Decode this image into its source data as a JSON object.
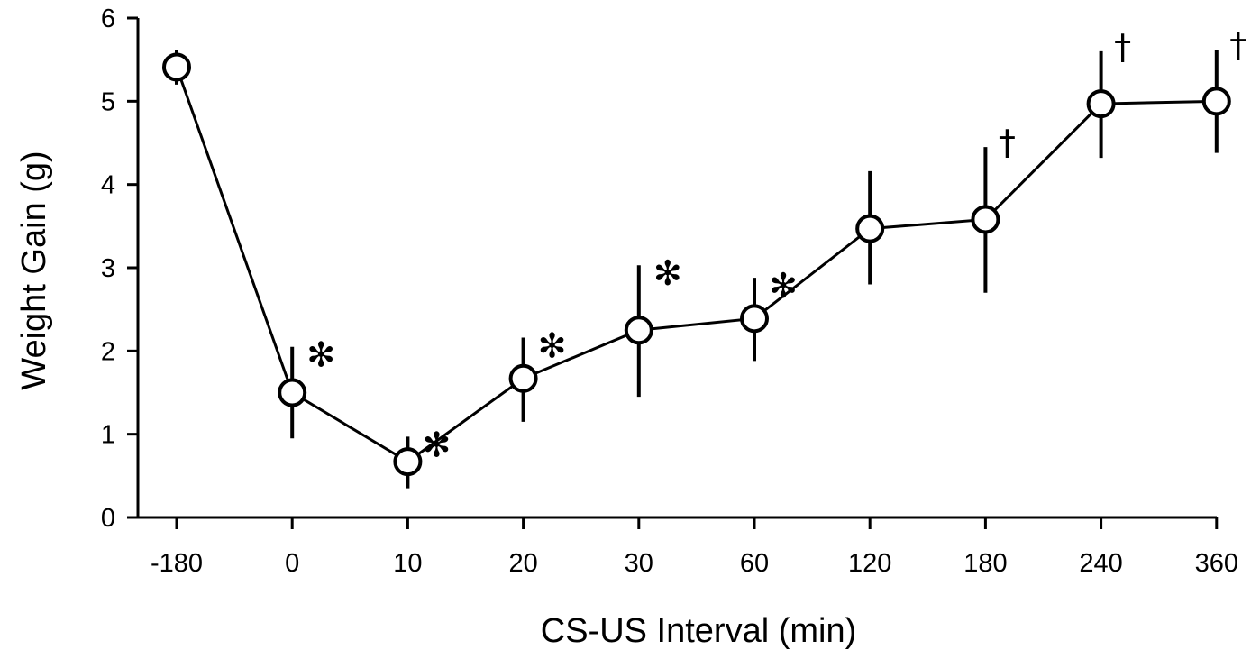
{
  "chart_data": {
    "type": "line",
    "xlabel": "CS-US Interval (min)",
    "ylabel": "Weight Gain (g)",
    "ylim": [
      0,
      6
    ],
    "y_ticks": [
      "0",
      "1",
      "2",
      "3",
      "4",
      "5",
      "6"
    ],
    "categories": [
      "-180",
      "0",
      "10",
      "20",
      "30",
      "60",
      "120",
      "180",
      "240",
      "360"
    ],
    "series": [
      {
        "values": [
          5.41,
          1.5,
          0.67,
          1.67,
          2.25,
          2.39,
          3.47,
          3.58,
          4.97,
          5.0
        ],
        "error_low": [
          5.2,
          0.95,
          0.35,
          1.15,
          1.45,
          1.88,
          2.8,
          2.7,
          4.32,
          4.38
        ],
        "error_high": [
          5.62,
          2.05,
          0.97,
          2.16,
          3.03,
          2.88,
          4.16,
          4.45,
          5.6,
          5.62
        ],
        "markers": [
          "",
          "✻",
          "✻",
          "✻",
          "✻",
          "✻",
          "",
          "†",
          "†",
          "†"
        ]
      }
    ],
    "grid": false,
    "legend": "none",
    "colors": {
      "line": "#000000",
      "marker_fill": "#ffffff",
      "background": "#ffffff"
    }
  }
}
